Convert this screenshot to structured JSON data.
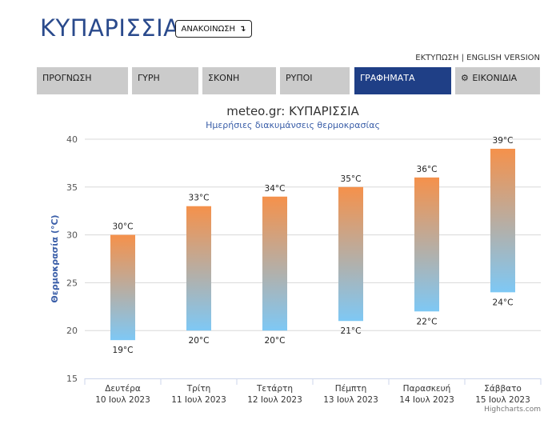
{
  "header": {
    "city": "ΚΥΠΑΡΙΣΣΙΑ",
    "announce_label": "ΑΝΑΚΟΙΝΩΣΗ",
    "announce_icon": "arrow-down-icon",
    "print_label": "ΕΚΤΥΠΩΣΗ",
    "separator": "|",
    "english_label": "ENGLISH VERSION"
  },
  "tabs": [
    {
      "label": "ΠΡΟΓΝΩΣΗ",
      "active": false
    },
    {
      "label": "ΓΥΡΗ",
      "active": false
    },
    {
      "label": "ΣΚΟΝΗ",
      "active": false
    },
    {
      "label": "ΡΥΠΟΙ",
      "active": false
    },
    {
      "label": "ΓΡΑΦΗΜΑΤΑ",
      "active": true
    },
    {
      "label": "ΕΙΚΟΝΙΔΙΑ",
      "active": false,
      "icon": "gear-icon"
    }
  ],
  "colors": {
    "accent": "#1f3f86",
    "title": "#2a4a8c",
    "bar_top": "#f5914b",
    "bar_bottom": "#7ec8f5"
  },
  "chart_data": {
    "type": "columnrange",
    "title": "meteo.gr: ΚΥΠΑΡΙΣΣΙΑ",
    "subtitle": "Ημερήσιες διακυμάνσεις θερμοκρασίας",
    "ylabel": "Θερμοκρασία (°C)",
    "ylim": [
      15,
      40
    ],
    "yticks": [
      15,
      20,
      25,
      30,
      35,
      40
    ],
    "categories": [
      [
        "Δευτέρα",
        "10 Ιουλ 2023"
      ],
      [
        "Τρίτη",
        "11 Ιουλ 2023"
      ],
      [
        "Τετάρτη",
        "12 Ιουλ 2023"
      ],
      [
        "Πέμπτη",
        "13 Ιουλ 2023"
      ],
      [
        "Παρασκευή",
        "14 Ιουλ 2023"
      ],
      [
        "Σάββατο",
        "15 Ιουλ 2023"
      ]
    ],
    "low": [
      19,
      20,
      20,
      21,
      22,
      24
    ],
    "high": [
      30,
      33,
      34,
      35,
      36,
      39
    ],
    "unit": "°C",
    "grid": true,
    "legend": false,
    "credits": "Highcharts.com"
  }
}
